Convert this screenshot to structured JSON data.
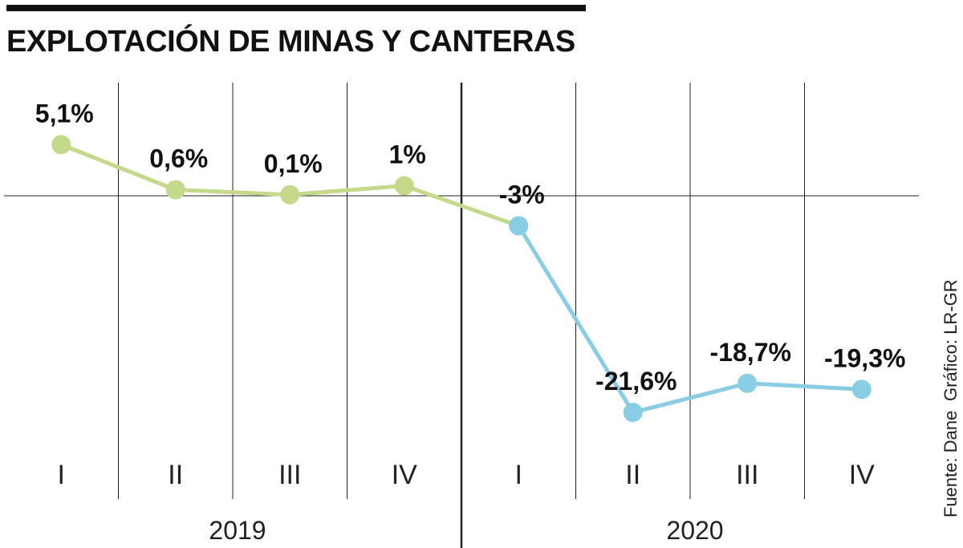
{
  "credits": {
    "source": "Fuente: Dane",
    "graphic": "Gráfico: LR-GR"
  },
  "colors": {
    "series_2019": "#c5d98a",
    "series_2020": "#88cde4",
    "axis": "#222222"
  },
  "chart_data": {
    "type": "line",
    "title": "EXPLOTACIÓN DE MINAS Y CANTERAS",
    "xlabel": "",
    "ylabel": "",
    "categories": [
      "I",
      "II",
      "III",
      "IV",
      "I",
      "II",
      "III",
      "IV"
    ],
    "years": [
      {
        "label": "2019",
        "quarters": 4
      },
      {
        "label": "2020",
        "quarters": 4
      }
    ],
    "ylim": [
      -25,
      6.5
    ],
    "grid": "vertical",
    "series": [
      {
        "values": [
          5.1,
          0.6,
          0.1,
          1.0,
          -3.0,
          null,
          null,
          null
        ],
        "color": "#c5d98a"
      },
      {
        "values": [
          null,
          null,
          null,
          null,
          -3.0,
          -21.6,
          -18.7,
          -19.3
        ],
        "color": "#88cde4"
      }
    ],
    "data_labels": [
      "5,1%",
      "0,6%",
      "0,1%",
      "1%",
      "-3%",
      "-21,6%",
      "-18,7%",
      "-19,3%"
    ]
  }
}
